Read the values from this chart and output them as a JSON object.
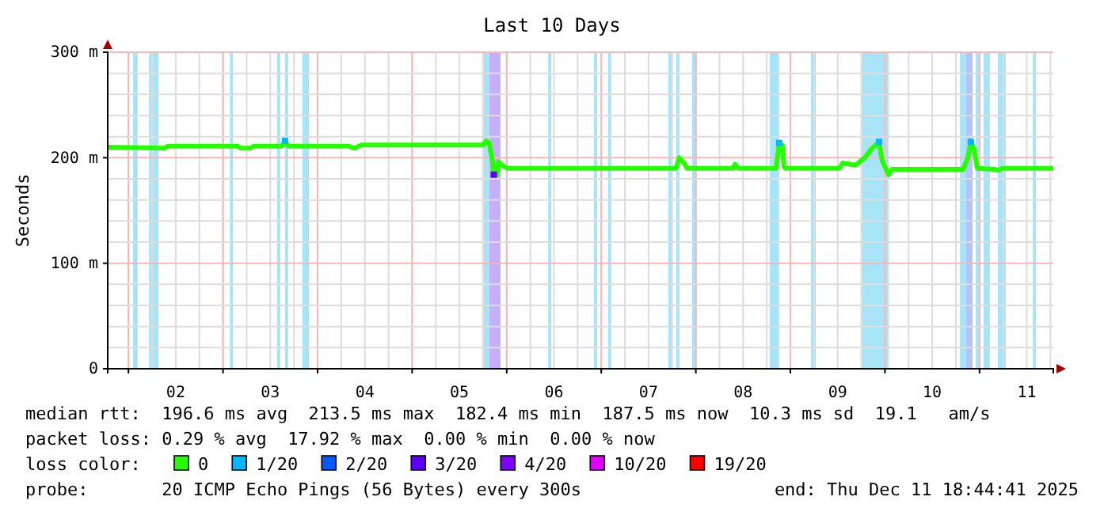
{
  "chart_data": {
    "type": "line",
    "title": "Last 10 Days",
    "ylabel": "Seconds",
    "legend_title": "loss color:",
    "legend": "bottom",
    "grid": true,
    "xlim": [
      "2025-12-01T18:44",
      "2025-12-11T18:44"
    ],
    "xticks": [
      {
        "value": "2025-12-02T00:00",
        "label": null
      },
      {
        "value": "2025-12-02T12:00",
        "label": "02"
      },
      {
        "value": "2025-12-03T00:00",
        "label": null
      },
      {
        "value": "2025-12-03T12:00",
        "label": "03"
      },
      {
        "value": "2025-12-04T00:00",
        "label": null
      },
      {
        "value": "2025-12-04T12:00",
        "label": "04"
      },
      {
        "value": "2025-12-05T00:00",
        "label": null
      },
      {
        "value": "2025-12-05T12:00",
        "label": "05"
      },
      {
        "value": "2025-12-06T00:00",
        "label": null
      },
      {
        "value": "2025-12-06T12:00",
        "label": "06"
      },
      {
        "value": "2025-12-07T00:00",
        "label": null
      },
      {
        "value": "2025-12-07T12:00",
        "label": "07"
      },
      {
        "value": "2025-12-08T00:00",
        "label": null
      },
      {
        "value": "2025-12-08T12:00",
        "label": "08"
      },
      {
        "value": "2025-12-09T00:00",
        "label": null
      },
      {
        "value": "2025-12-09T12:00",
        "label": "09"
      },
      {
        "value": "2025-12-10T00:00",
        "label": null
      },
      {
        "value": "2025-12-10T12:00",
        "label": "10"
      },
      {
        "value": "2025-12-11T00:00",
        "label": null
      },
      {
        "value": "2025-12-11T12:00",
        "label": "11"
      }
    ],
    "ylim": [
      0,
      300
    ],
    "yticks": [
      0,
      {
        "value": 100,
        "label": "100 m"
      },
      {
        "value": 200,
        "label": "200 m"
      },
      {
        "value": 300,
        "label": "300 m"
      }
    ],
    "series": [
      {
        "name": "0",
        "color": "#26ff00",
        "line_style": "solid",
        "x": [
          "2025-12-01T18:44",
          "2025-12-02T09:14",
          "2025-12-02T10:00",
          "2025-12-03T03:44",
          "2025-12-03T04:30",
          "2025-12-03T06:56",
          "2025-12-03T07:44",
          "2025-12-03T14:56",
          "2025-12-03T15:44",
          "2025-12-03T16:32",
          "2025-12-04T07:50",
          "2025-12-04T09:26",
          "2025-12-04T11:00",
          "2025-12-05T18:00",
          "2025-12-05T18:48",
          "2025-12-05T19:32",
          "2025-12-05T20:20",
          "2025-12-05T20:44",
          "2025-12-05T21:32",
          "2025-12-05T21:56",
          "2025-12-05T23:08",
          "2025-12-06T00:20",
          "2025-12-07T18:58",
          "2025-12-07T19:46",
          "2025-12-07T21:00",
          "2025-12-07T21:46",
          "2025-12-08T09:32",
          "2025-12-08T09:56",
          "2025-12-08T10:44",
          "2025-12-08T20:22",
          "2025-12-08T21:10",
          "2025-12-08T21:58",
          "2025-12-08T22:22",
          "2025-12-08T22:46",
          "2025-12-09T12:28",
          "2025-12-09T13:16",
          "2025-12-09T16:30",
          "2025-12-09T18:54",
          "2025-12-09T20:30",
          "2025-12-09T22:30",
          "2025-12-09T23:18",
          "2025-12-10T00:56",
          "2025-12-10T01:44",
          "2025-12-10T19:50",
          "2025-12-10T21:02",
          "2025-12-10T21:50",
          "2025-12-10T22:38",
          "2025-12-10T23:26",
          "2025-12-11T03:50",
          "2025-12-11T04:38",
          "2025-12-11T05:50",
          "2025-12-11T18:44"
        ],
        "values": [
          210,
          209,
          211,
          211,
          209,
          209,
          211,
          211,
          216,
          211,
          211,
          209,
          212,
          212,
          216,
          214,
          198,
          184,
          184,
          196,
          192,
          190,
          190,
          200,
          195,
          190,
          190,
          194,
          190,
          190,
          214,
          212,
          192,
          190,
          190,
          195,
          193,
          200,
          208,
          215,
          197,
          184,
          189,
          189,
          200,
          215,
          208,
          190,
          189,
          188,
          190,
          190
        ]
      },
      {
        "name": "1/20",
        "color": "#00b8ff",
        "type": "scatter",
        "marker": "square",
        "x": [
          "2025-12-03T15:44",
          "2025-12-08T21:10",
          "2025-12-09T22:30",
          "2025-12-10T21:50"
        ],
        "values": [
          216,
          214,
          215,
          215
        ]
      },
      {
        "name": "2/20",
        "color": "#0059ff",
        "type": "scatter",
        "marker": "square"
      },
      {
        "name": "3/20",
        "color": "#5e00ff",
        "type": "scatter",
        "marker": "square",
        "x": [
          "2025-12-05T20:44"
        ],
        "values": [
          184
        ]
      },
      {
        "name": "4/20",
        "color": "#7e00ff",
        "type": "scatter",
        "marker": "square"
      },
      {
        "name": "10/20",
        "color": "#dd00ff",
        "type": "scatter",
        "marker": "square"
      },
      {
        "name": "19/20",
        "color": "#ff0000",
        "type": "scatter",
        "marker": "square"
      }
    ],
    "bands": [
      {
        "axis": "x",
        "from": "2025-12-02T01:10",
        "to": "2025-12-02T02:20",
        "color": "#a8e4f8"
      },
      {
        "axis": "x",
        "from": "2025-12-02T05:14",
        "to": "2025-12-02T07:38",
        "color": "#a8e4f8"
      },
      {
        "axis": "x",
        "from": "2025-12-03T01:44",
        "to": "2025-12-03T02:32",
        "color": "#a8e4f8"
      },
      {
        "axis": "x",
        "from": "2025-12-03T13:44",
        "to": "2025-12-03T14:32",
        "color": "#a8e4f8"
      },
      {
        "axis": "x",
        "from": "2025-12-03T15:44",
        "to": "2025-12-03T16:32",
        "color": "#a8e4f8"
      },
      {
        "axis": "x",
        "from": "2025-12-03T20:08",
        "to": "2025-12-03T21:50",
        "color": "#a8e4f8"
      },
      {
        "axis": "x",
        "from": "2025-12-05T18:02",
        "to": "2025-12-05T19:38",
        "color": "#a8e4f8"
      },
      {
        "axis": "x",
        "from": "2025-12-05T19:38",
        "to": "2025-12-05T22:26",
        "color": "#c4b0f8"
      },
      {
        "axis": "x",
        "from": "2025-12-06T10:32",
        "to": "2025-12-06T11:20",
        "color": "#a8e4f8"
      },
      {
        "axis": "x",
        "from": "2025-12-06T22:08",
        "to": "2025-12-06T22:56",
        "color": "#a8e4f8"
      },
      {
        "axis": "x",
        "from": "2025-12-07T01:44",
        "to": "2025-12-07T02:32",
        "color": "#a8e4f8"
      },
      {
        "axis": "x",
        "from": "2025-12-07T17:02",
        "to": "2025-12-07T17:50",
        "color": "#a8e4f8"
      },
      {
        "axis": "x",
        "from": "2025-12-07T19:02",
        "to": "2025-12-07T19:50",
        "color": "#a8e4f8"
      },
      {
        "axis": "x",
        "from": "2025-12-07T23:02",
        "to": "2025-12-08T00:14",
        "color": "#a8e4f8"
      },
      {
        "axis": "x",
        "from": "2025-12-08T18:44",
        "to": "2025-12-08T21:08",
        "color": "#a8e4f8"
      },
      {
        "axis": "x",
        "from": "2025-12-09T05:14",
        "to": "2025-12-09T06:26",
        "color": "#a8e4f8"
      },
      {
        "axis": "x",
        "from": "2025-12-09T18:08",
        "to": "2025-12-10T00:56",
        "color": "#a8e4f8"
      },
      {
        "axis": "x",
        "from": "2025-12-10T19:02",
        "to": "2025-12-10T20:38",
        "color": "#a8e4f8"
      },
      {
        "axis": "x",
        "from": "2025-12-10T20:38",
        "to": "2025-12-10T22:14",
        "color": "#b4c4f8"
      },
      {
        "axis": "x",
        "from": "2025-12-10T23:02",
        "to": "2025-12-11T00:14",
        "color": "#a8e4f8"
      },
      {
        "axis": "x",
        "from": "2025-12-11T01:02",
        "to": "2025-12-11T02:38",
        "color": "#a8e4f8"
      },
      {
        "axis": "x",
        "from": "2025-12-11T04:38",
        "to": "2025-12-11T06:38",
        "color": "#a8e4f8"
      },
      {
        "axis": "x",
        "from": "2025-12-11T13:32",
        "to": "2025-12-11T14:20",
        "color": "#a8e4f8"
      }
    ],
    "annotations": [
      "median rtt:  196.6 ms avg  213.5 ms max  182.4 ms min  187.5 ms now  10.3 ms sd  19.1   am/s",
      "packet loss: 0.29 % avg  17.92 % max  0.00 % min  0.00 % now",
      "probe:       20 ICMP Echo Pings (56 Bytes) every 300s",
      "end: Thu Dec 11 18:44:41 2025"
    ]
  }
}
